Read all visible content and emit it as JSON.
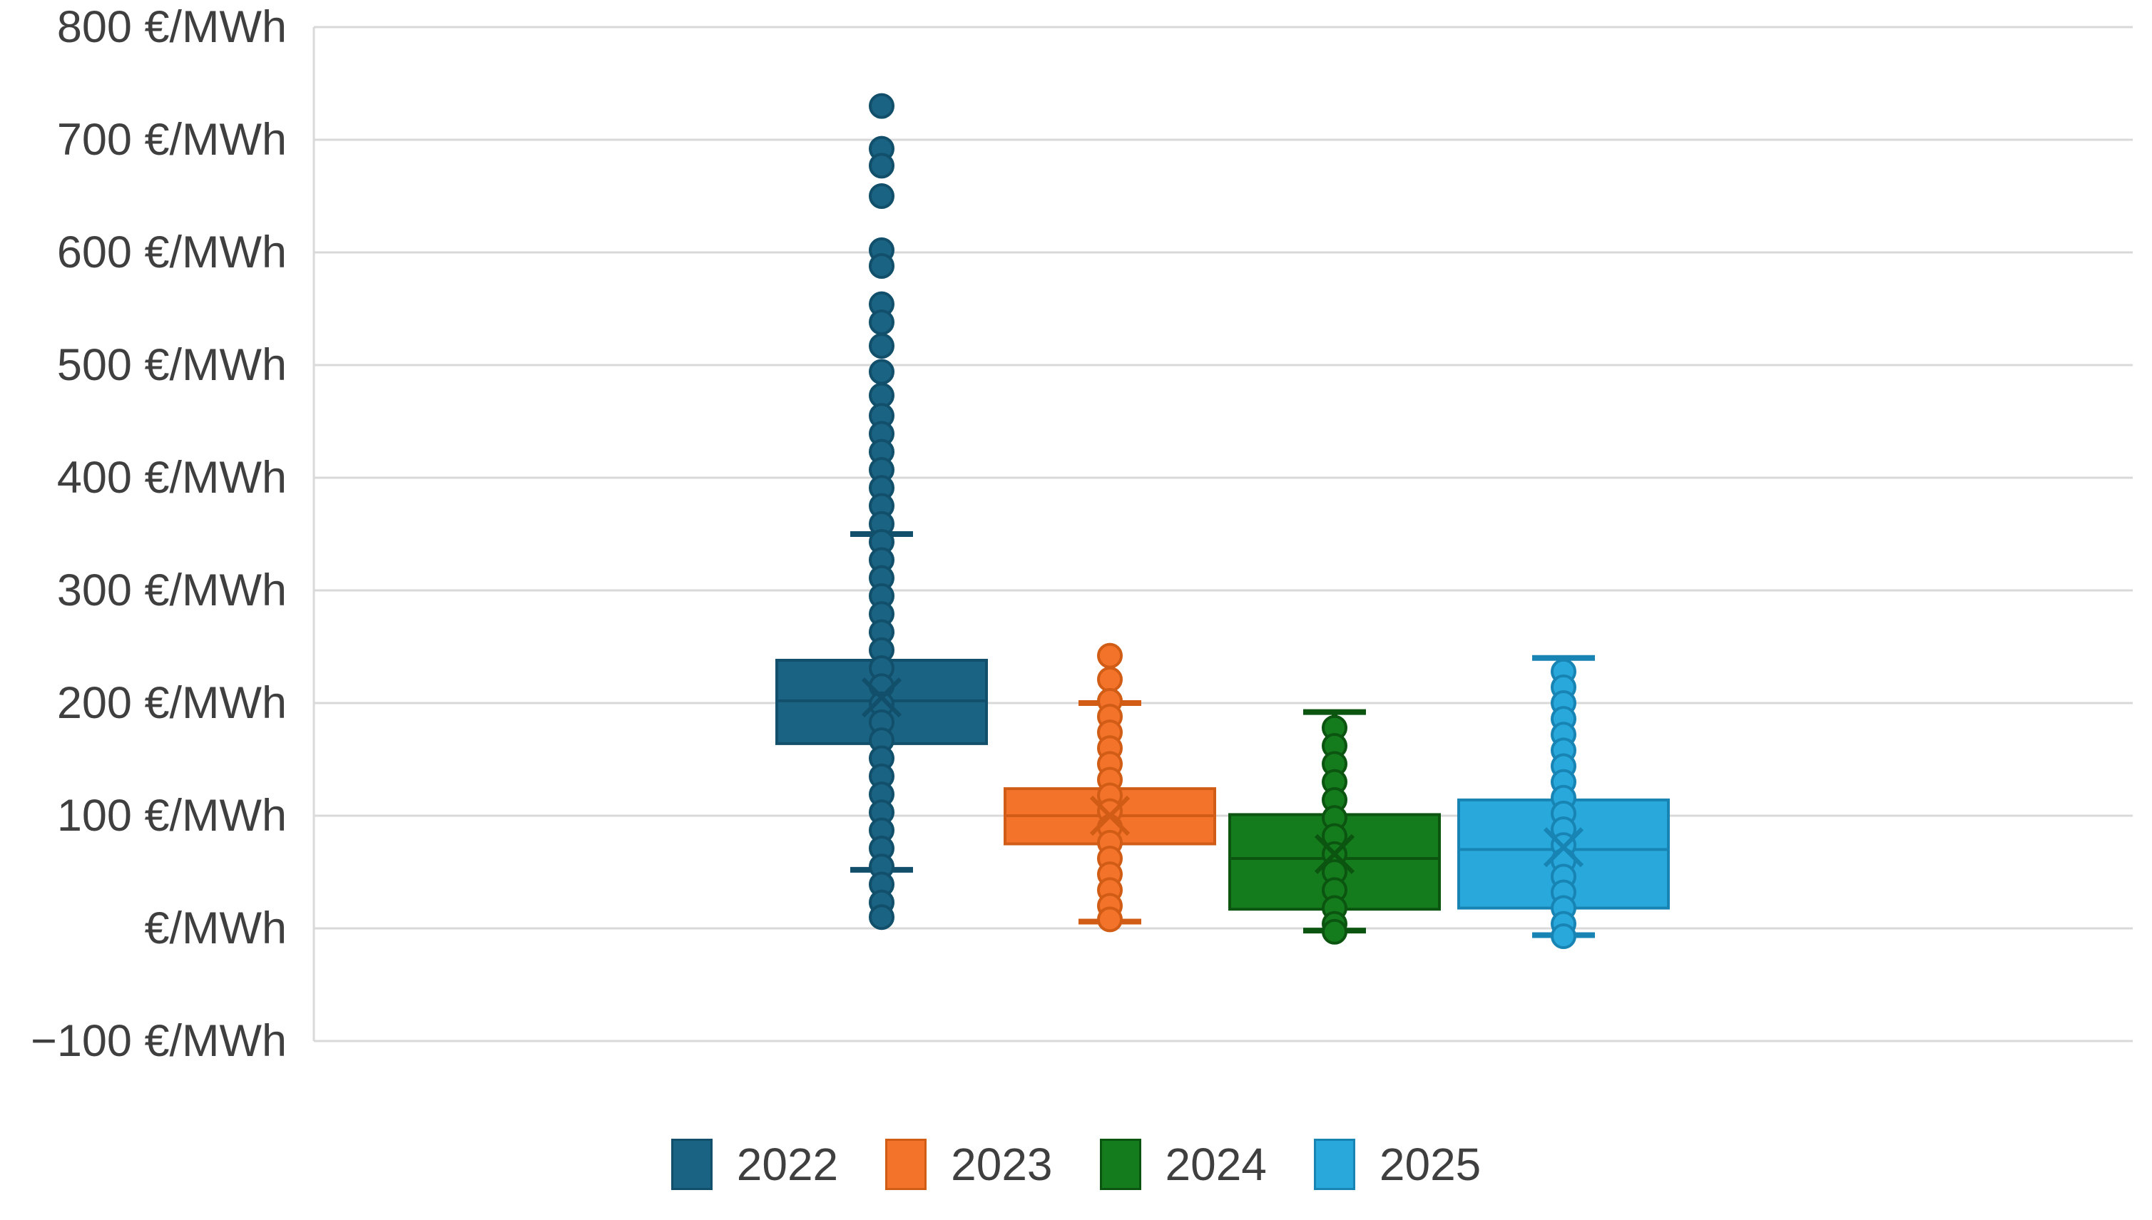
{
  "chart_data": {
    "type": "boxplot",
    "title": "",
    "unit": "€/MWh",
    "grid": true,
    "legend_position": "bottom",
    "y_axis": {
      "min": -100,
      "max": 800,
      "tick_step": 100,
      "tick_labels": [
        "800 €/MWh",
        "700 €/MWh",
        "600 €/MWh",
        "500 €/MWh",
        "400 €/MWh",
        "300 €/MWh",
        "200 €/MWh",
        "100 €/MWh",
        "€/MWh",
        "−100 €/MWh"
      ]
    },
    "categories": [
      "2022",
      "2023",
      "2024",
      "2025"
    ],
    "series": [
      {
        "name": "2022",
        "fill": "#1B6383",
        "stroke": "#114F6B",
        "q1": 164,
        "median": 202,
        "q3": 238,
        "mean": 205,
        "whisker_low": 52,
        "whisker_high": 350,
        "points": [
          730,
          692,
          677,
          650,
          602,
          588,
          554,
          538,
          517,
          494,
          473,
          455,
          439,
          423,
          407,
          391,
          375,
          359,
          343,
          327,
          311,
          295,
          279,
          263,
          247,
          231,
          215,
          199,
          183,
          167,
          151,
          135,
          119,
          103,
          87,
          71,
          55,
          39,
          23,
          10
        ]
      },
      {
        "name": "2023",
        "fill": "#F3732B",
        "stroke": "#D15C15",
        "q1": 75,
        "median": 100,
        "q3": 124,
        "mean": 100,
        "whisker_low": 6,
        "whisker_high": 200,
        "points": [
          242,
          221,
          202,
          188,
          174,
          160,
          146,
          132,
          118,
          104,
          90,
          76,
          62,
          48,
          34,
          20,
          8
        ]
      },
      {
        "name": "2024",
        "fill": "#157C1E",
        "stroke": "#0B5511",
        "q1": 17,
        "median": 62,
        "q3": 101,
        "mean": 66,
        "whisker_low": -2,
        "whisker_high": 192,
        "points": [
          178,
          162,
          146,
          130,
          114,
          98,
          82,
          66,
          50,
          34,
          18,
          4,
          -3
        ]
      },
      {
        "name": "2025",
        "fill": "#29A8DC",
        "stroke": "#1884B4",
        "q1": 18,
        "median": 70,
        "q3": 114,
        "mean": 72,
        "whisker_low": -6,
        "whisker_high": 240,
        "points": [
          228,
          214,
          200,
          186,
          172,
          158,
          144,
          130,
          116,
          102,
          88,
          74,
          60,
          46,
          32,
          18,
          4,
          -7
        ]
      }
    ],
    "style": {
      "gridline_color": "#D9D9D9",
      "axis_line_color": "#D9D9D9",
      "label_color": "#3F3F3F",
      "background": "#FFFFFF"
    }
  }
}
